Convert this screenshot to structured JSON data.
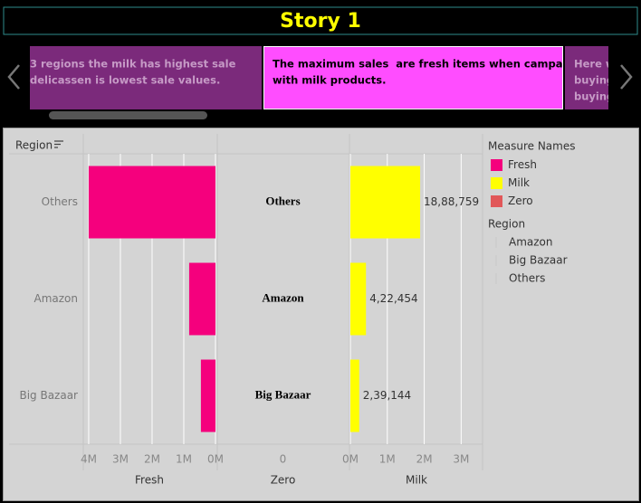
{
  "story": {
    "title": "Story 1",
    "points": [
      {
        "lines": [
          "3 regions the milk has highest sale",
          "delicassen is lowest sale values."
        ]
      },
      {
        "lines": [
          "The maximum sales  are fresh items when campare",
          "with milk products."
        ]
      },
      {
        "lines": [
          "Here w",
          "buying",
          "buying"
        ]
      }
    ]
  },
  "chart_data": {
    "type": "bar",
    "orientation": "horizontal",
    "row_header": "Region",
    "categories": [
      "Others",
      "Amazon",
      "Big Bazaar"
    ],
    "legend_title": "Measure Names",
    "region_legend_title": "Region",
    "series": [
      {
        "name": "Fresh",
        "color": "#f5007d",
        "values": [
          4000000,
          830000,
          460000
        ],
        "xlim": [
          4170000,
          0
        ],
        "grid": true,
        "xticks": [
          {
            "value": 4000000,
            "label": "4M"
          },
          {
            "value": 3000000,
            "label": "3M"
          },
          {
            "value": 2000000,
            "label": "2M"
          },
          {
            "value": 1000000,
            "label": "1M"
          },
          {
            "value": 0,
            "label": "0M"
          }
        ]
      },
      {
        "name": "Milk",
        "color": "#ffff00",
        "values": [
          1888759,
          422454,
          239144
        ],
        "value_labels": [
          "18,88,759",
          "4,22,454",
          "2,39,144"
        ],
        "xlim": [
          0,
          3580000
        ],
        "grid": true,
        "xticks": [
          {
            "value": 0,
            "label": "0M"
          },
          {
            "value": 1000000,
            "label": "1M"
          },
          {
            "value": 2000000,
            "label": "2M"
          },
          {
            "value": 3000000,
            "label": "3M"
          }
        ]
      },
      {
        "name": "Zero",
        "color": "#e15759",
        "values": [
          0,
          0,
          0
        ],
        "xlim": [
          -1,
          1
        ],
        "grid": false,
        "xticks": [
          0
        ]
      }
    ]
  }
}
